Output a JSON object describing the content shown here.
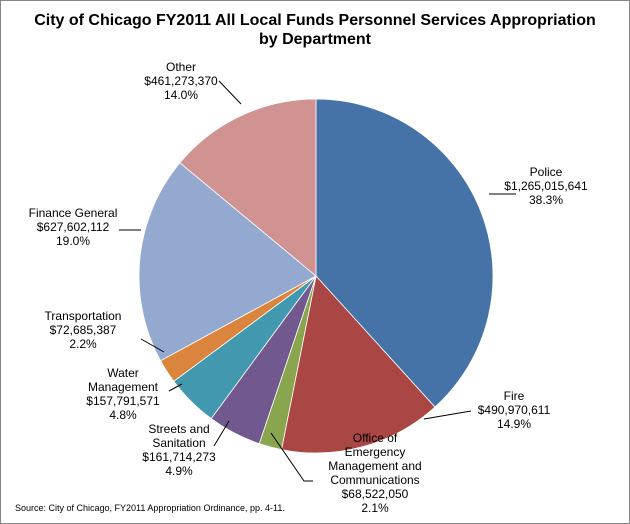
{
  "chart_data": {
    "type": "pie",
    "title_line1": "City of Chicago FY2011 All Local Funds Personnel Services Appropriation",
    "title_line2": "by Department",
    "slices": [
      {
        "name_lines": [
          "Police"
        ],
        "value": 1265015641,
        "value_label": "$1,265,015,641",
        "percent_label": "38.3%",
        "color": "#4572A7"
      },
      {
        "name_lines": [
          "Fire"
        ],
        "value": 490970611,
        "value_label": "$490,970,611",
        "percent_label": "14.9%",
        "color": "#AA4643"
      },
      {
        "name_lines": [
          "Office of",
          "Emergency",
          "Management and",
          "Communications"
        ],
        "value": 68522050,
        "value_label": "$68,522,050",
        "percent_label": "2.1%",
        "color": "#89A54E"
      },
      {
        "name_lines": [
          "Streets and",
          "Sanitation"
        ],
        "value": 161714273,
        "value_label": "$161,714,273",
        "percent_label": "4.9%",
        "color": "#71588F"
      },
      {
        "name_lines": [
          "Water",
          "Management"
        ],
        "value": 157791571,
        "value_label": "$157,791,571",
        "percent_label": "4.8%",
        "color": "#4198AF"
      },
      {
        "name_lines": [
          "Transportation"
        ],
        "value": 72685387,
        "value_label": "$72,685,387",
        "percent_label": "2.2%",
        "color": "#DB843D"
      },
      {
        "name_lines": [
          "Finance General"
        ],
        "value": 627602112,
        "value_label": "$627,602,112",
        "percent_label": "19.0%",
        "color": "#93A9CF"
      },
      {
        "name_lines": [
          "Other"
        ],
        "value": 461273370,
        "value_label": "$461,273,370",
        "percent_label": "14.0%",
        "color": "#D19392"
      }
    ],
    "source": "Source: City of Chicago, FY2011 Appropriation Ordinance, pp. 4-11."
  }
}
